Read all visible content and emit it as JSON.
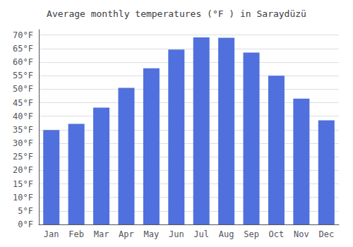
{
  "chart_data": {
    "type": "bar",
    "title": "Average monthly temperatures (°F ) in Saraydüzü",
    "categories": [
      "Jan",
      "Feb",
      "Mar",
      "Apr",
      "May",
      "Jun",
      "Jul",
      "Aug",
      "Sep",
      "Oct",
      "Nov",
      "Dec"
    ],
    "values": [
      34.9,
      37.2,
      43.2,
      50.5,
      57.7,
      64.6,
      69.1,
      69.0,
      63.5,
      55.0,
      46.5,
      38.5
    ],
    "ylim": [
      0,
      72
    ],
    "yticks": [
      {
        "value": 0,
        "label": "0°F"
      },
      {
        "value": 5,
        "label": "5°F"
      },
      {
        "value": 10,
        "label": "10°F"
      },
      {
        "value": 15,
        "label": "15°F"
      },
      {
        "value": 20,
        "label": "20°F"
      },
      {
        "value": 25,
        "label": "25°F"
      },
      {
        "value": 30,
        "label": "30°F"
      },
      {
        "value": 35,
        "label": "35°F"
      },
      {
        "value": 40,
        "label": "40°F"
      },
      {
        "value": 45,
        "label": "45°F"
      },
      {
        "value": 50,
        "label": "50°F"
      },
      {
        "value": 55,
        "label": "55°F"
      },
      {
        "value": 60,
        "label": "60°F"
      },
      {
        "value": 65,
        "label": "65°F"
      },
      {
        "value": 70,
        "label": "70°F"
      }
    ],
    "grid": true
  }
}
